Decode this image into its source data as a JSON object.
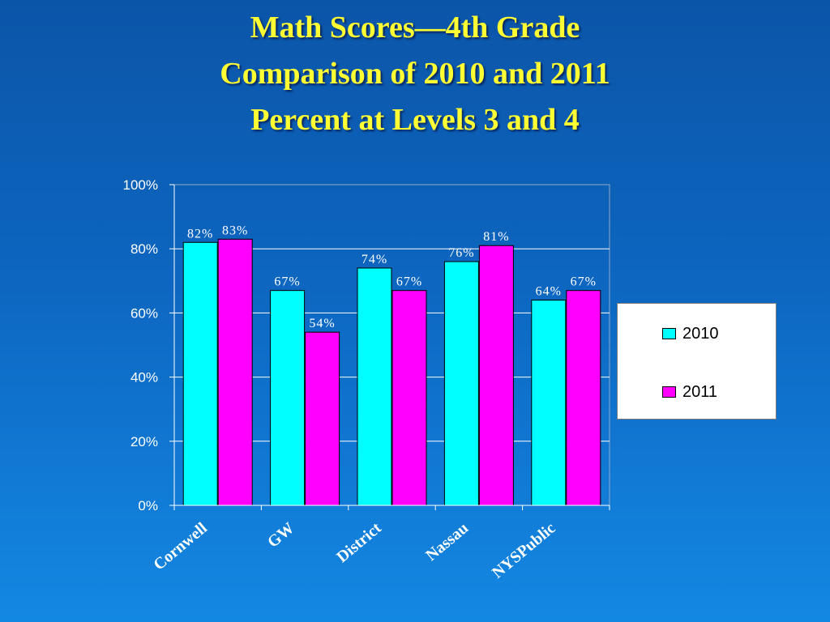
{
  "title": {
    "line1": "Math Scores—4th Grade",
    "line2": "Comparison of 2010 and 2011",
    "line3": "Percent at Levels 3 and 4"
  },
  "colors": {
    "title": "#ffff33",
    "series_2010": "#00ffff",
    "series_2011": "#ff00ff"
  },
  "chart_data": {
    "type": "bar",
    "categories": [
      "Cornwell",
      "GW",
      "District",
      "Nassau",
      "NYSPublic"
    ],
    "series": [
      {
        "name": "2010",
        "values": [
          82,
          67,
          74,
          76,
          64
        ],
        "labels": [
          "82%",
          "67%",
          "74%",
          "76%",
          "64%"
        ]
      },
      {
        "name": "2011",
        "values": [
          83,
          54,
          67,
          81,
          67
        ],
        "labels": [
          "83%",
          "54%",
          "67%",
          "81%",
          "67%"
        ]
      }
    ],
    "ylim": [
      0,
      100
    ],
    "yticks": [
      "0%",
      "20%",
      "40%",
      "60%",
      "80%",
      "100%"
    ],
    "grid": true,
    "legend": "right"
  }
}
